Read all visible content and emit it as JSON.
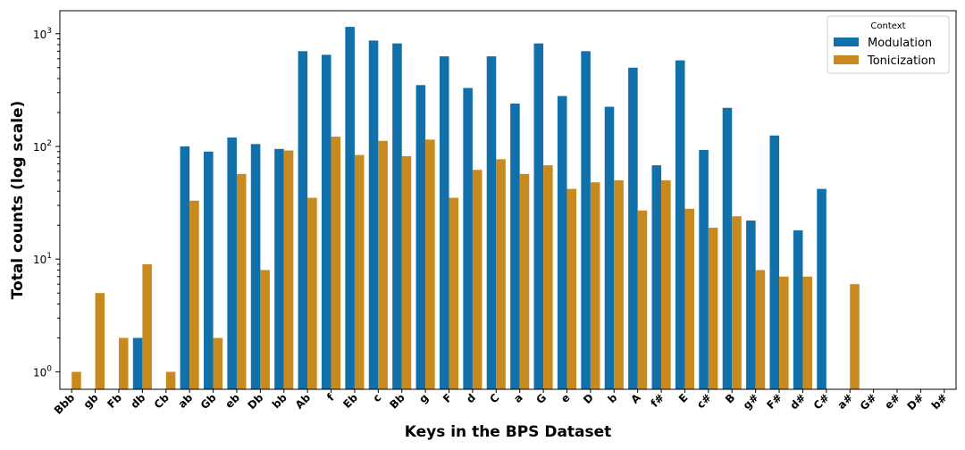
{
  "chart_data": {
    "type": "bar",
    "title": "",
    "xlabel": "Keys in the BPS Dataset",
    "ylabel": "Total counts (log scale)",
    "yscale": "log",
    "ylim": [
      0.7,
      1600
    ],
    "ytick_values": [
      1,
      10,
      100,
      1000
    ],
    "ytick_base": "10",
    "ytick_exponents": [
      "0",
      "1",
      "2",
      "3"
    ],
    "grid": false,
    "legend": {
      "title": "Context",
      "placement": "top-right"
    },
    "categories": [
      "Bbb",
      "gb",
      "Fb",
      "db",
      "Cb",
      "ab",
      "Gb",
      "eb",
      "Db",
      "bb",
      "Ab",
      "f",
      "Eb",
      "c",
      "Bb",
      "g",
      "F",
      "d",
      "C",
      "a",
      "G",
      "e",
      "D",
      "b",
      "A",
      "f#",
      "E",
      "c#",
      "B",
      "g#",
      "F#",
      "d#",
      "C#",
      "a#",
      "G#",
      "e#",
      "D#",
      "b#"
    ],
    "series": [
      {
        "name": "Modulation",
        "color": "#1170aa",
        "values": [
          null,
          null,
          null,
          2,
          null,
          100,
          90,
          120,
          105,
          95,
          700,
          650,
          1150,
          870,
          820,
          350,
          630,
          330,
          630,
          240,
          820,
          280,
          700,
          225,
          500,
          68,
          580,
          93,
          220,
          22,
          125,
          18,
          42,
          null,
          null,
          null,
          null,
          null
        ]
      },
      {
        "name": "Tonicization",
        "color": "#c88a1f",
        "values": [
          1,
          5,
          2,
          9,
          1,
          33,
          2,
          57,
          8,
          92,
          35,
          122,
          84,
          112,
          82,
          115,
          35,
          62,
          77,
          57,
          68,
          42,
          48,
          50,
          27,
          50,
          28,
          19,
          24,
          8,
          7,
          7,
          null,
          6,
          null,
          null,
          null,
          null
        ]
      }
    ]
  }
}
